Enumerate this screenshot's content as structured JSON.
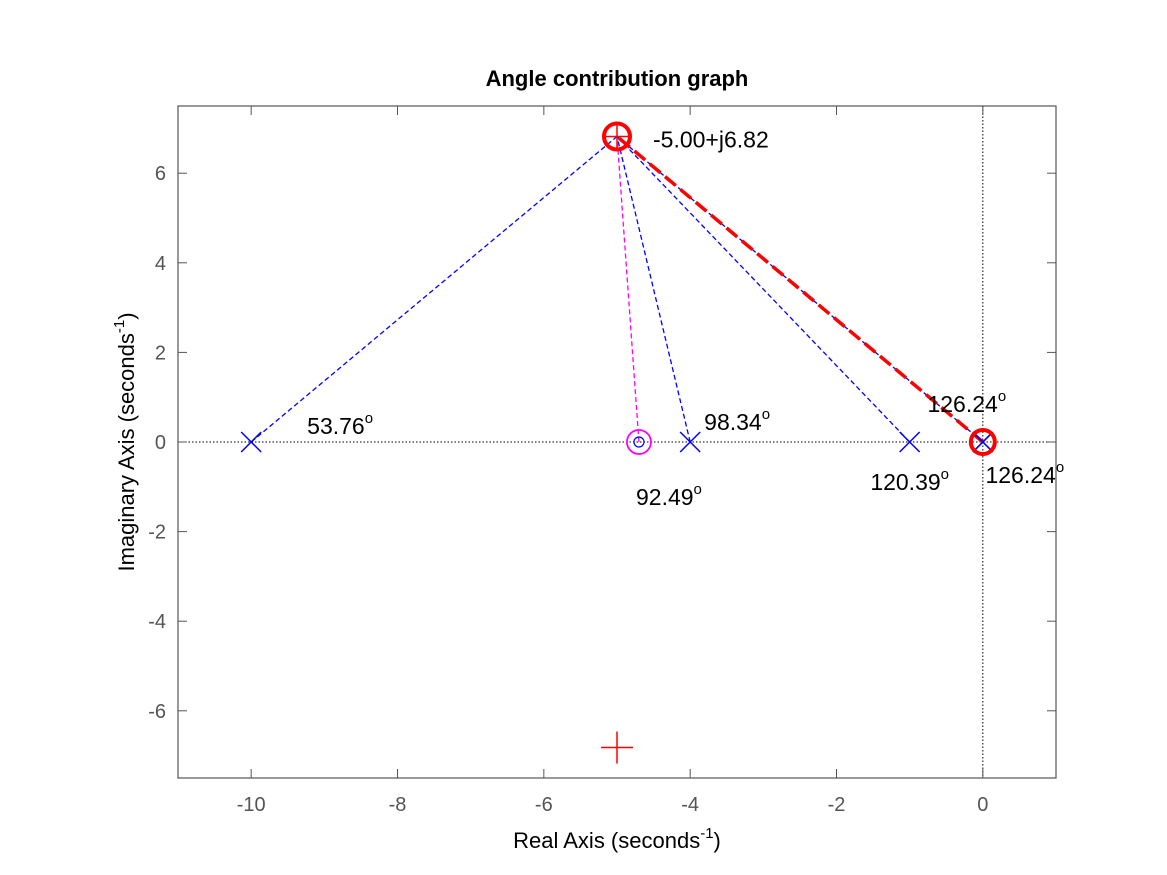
{
  "chart_data": {
    "type": "scatter",
    "title": "Angle contribution graph",
    "xlabel": "Real Axis (seconds",
    "ylabel": "Imaginary Axis (seconds",
    "label_superscript": "-1",
    "label_suffix": ")",
    "xlim": [
      -11,
      1
    ],
    "ylim": [
      -7.5,
      7.5
    ],
    "xticks": [
      -10,
      -8,
      -6,
      -4,
      -2,
      0
    ],
    "yticks": [
      -6,
      -4,
      -2,
      0,
      2,
      4,
      6
    ],
    "grid": false,
    "colors": {
      "poles": "#0000ff",
      "zero": "#ff00ff",
      "highlight": "#ff0000",
      "axes": "#555555"
    },
    "test_point": {
      "x": -5.0,
      "y": 6.82,
      "label": "-5.00+j6.82"
    },
    "conjugate_point": {
      "x": -5.0,
      "y": -6.82
    },
    "poles": [
      {
        "x": -10,
        "y": 0,
        "angle": "53.76",
        "label_pos": "right"
      },
      {
        "x": -4,
        "y": 0,
        "angle": "98.34",
        "label_pos": "upper-right"
      },
      {
        "x": -1,
        "y": 0,
        "angle": "120.39",
        "label_pos": "below"
      },
      {
        "x": 0,
        "y": 0,
        "angle": "126.24",
        "label_pos": "above"
      },
      {
        "x": 0,
        "y": 0,
        "angle": "126.24",
        "label_pos": "below-right"
      }
    ],
    "zeros": [
      {
        "x": -4.7,
        "y": 0,
        "angle": "92.49",
        "label_pos": "below"
      }
    ],
    "degree_symbol": "o"
  }
}
